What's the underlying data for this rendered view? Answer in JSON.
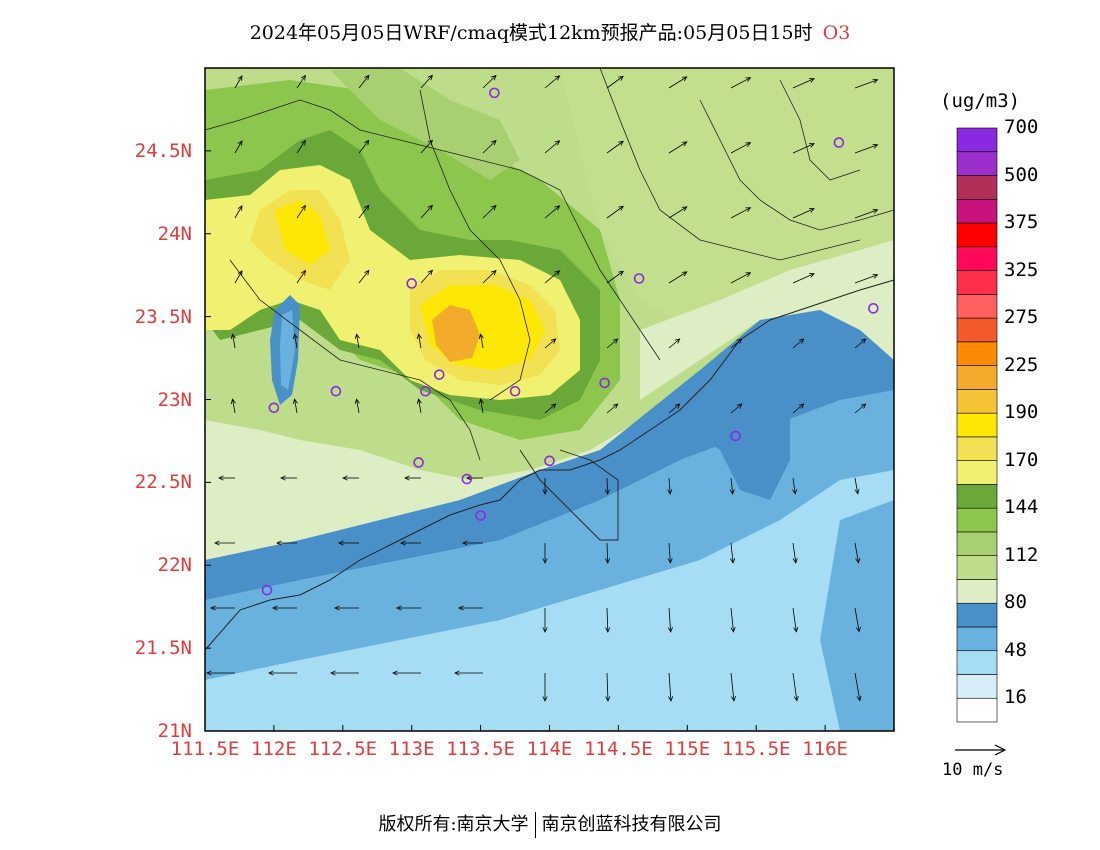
{
  "header": {
    "title": "2024年05月05日WRF/cmaq模式12km预报产品:05月05日15时",
    "species": "O3"
  },
  "map": {
    "lat_labels": [
      "24.5N",
      "24N",
      "23.5N",
      "23N",
      "22.5N",
      "22N",
      "21.5N",
      "21N"
    ],
    "lon_labels": [
      "111.5E",
      "112E",
      "112.5E",
      "113E",
      "113.5E",
      "114E",
      "114.5E",
      "115E",
      "115.5E",
      "116E"
    ],
    "lat_range": [
      21,
      25
    ],
    "lon_range": [
      111.5,
      116.5
    ]
  },
  "legend": {
    "units": "(ug/m3)",
    "colors": [
      "#ffffff",
      "#d7eef8",
      "#a6dcf4",
      "#6ab2de",
      "#4a90c8",
      "#ddedc4",
      "#bedd8a",
      "#a8d070",
      "#8cc64c",
      "#6aa83a",
      "#f1f171",
      "#f3e154",
      "#fde805",
      "#f5c436",
      "#f3ab2c",
      "#fe8a03",
      "#f25a2c",
      "#fe6060",
      "#fd2f4a",
      "#fe0a58",
      "#fe0000",
      "#c8137c",
      "#b22f5a",
      "#9c2fcc",
      "#8a2ae0"
    ],
    "labels": [
      "16",
      "48",
      "80",
      "112",
      "144",
      "170",
      "190",
      "225",
      "275",
      "325",
      "375",
      "500",
      "700"
    ],
    "vector_label": "10 m/s"
  },
  "stations_color": "#8a2be2",
  "footer": {
    "left": "版权所有:南京大学",
    "right": "南京创蓝科技有限公司"
  }
}
